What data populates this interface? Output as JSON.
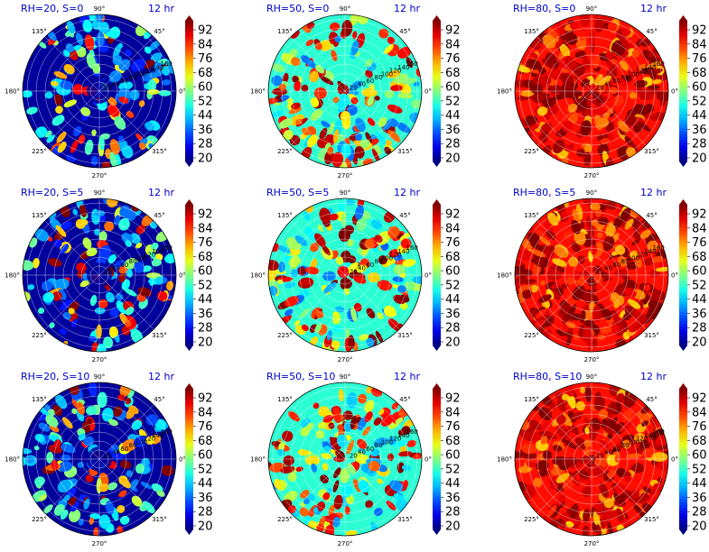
{
  "chart_data": {
    "type": "heatmap",
    "projection": "polar",
    "grid": true,
    "time_label": "12 hr",
    "angle_ticks": [
      "0°",
      "45°",
      "90°",
      "135°",
      "180°",
      "225°",
      "270°",
      "315°"
    ],
    "radial_ticks": [
      "20",
      "40",
      "60",
      "80",
      "100",
      "120",
      "140",
      "160"
    ],
    "colorbar": {
      "colormap": "jet",
      "range": [
        20,
        92
      ],
      "ticks": [
        "92",
        "84",
        "76",
        "68",
        "60",
        "52",
        "44",
        "36",
        "28",
        "20"
      ],
      "extend": "both"
    },
    "panels": [
      {
        "title": "RH=20, S=0",
        "rh": 20,
        "s": 0,
        "background_value": 22,
        "hot_fraction": 0.38
      },
      {
        "title": "RH=50, S=0",
        "rh": 50,
        "s": 0,
        "background_value": 50,
        "hot_fraction": 0.45
      },
      {
        "title": "RH=80, S=0",
        "rh": 80,
        "s": 0,
        "background_value": 82,
        "hot_fraction": 0.7
      },
      {
        "title": "RH=20, S=5",
        "rh": 20,
        "s": 5,
        "background_value": 22,
        "hot_fraction": 0.38
      },
      {
        "title": "RH=50, S=5",
        "rh": 50,
        "s": 5,
        "background_value": 50,
        "hot_fraction": 0.45
      },
      {
        "title": "RH=80, S=5",
        "rh": 80,
        "s": 5,
        "background_value": 82,
        "hot_fraction": 0.7
      },
      {
        "title": "RH=20, S=10",
        "rh": 20,
        "s": 10,
        "background_value": 22,
        "hot_fraction": 0.4
      },
      {
        "title": "RH=50, S=10",
        "rh": 50,
        "s": 10,
        "background_value": 50,
        "hot_fraction": 0.45
      },
      {
        "title": "RH=80, S=10",
        "rh": 80,
        "s": 10,
        "background_value": 82,
        "hot_fraction": 0.7
      }
    ]
  }
}
